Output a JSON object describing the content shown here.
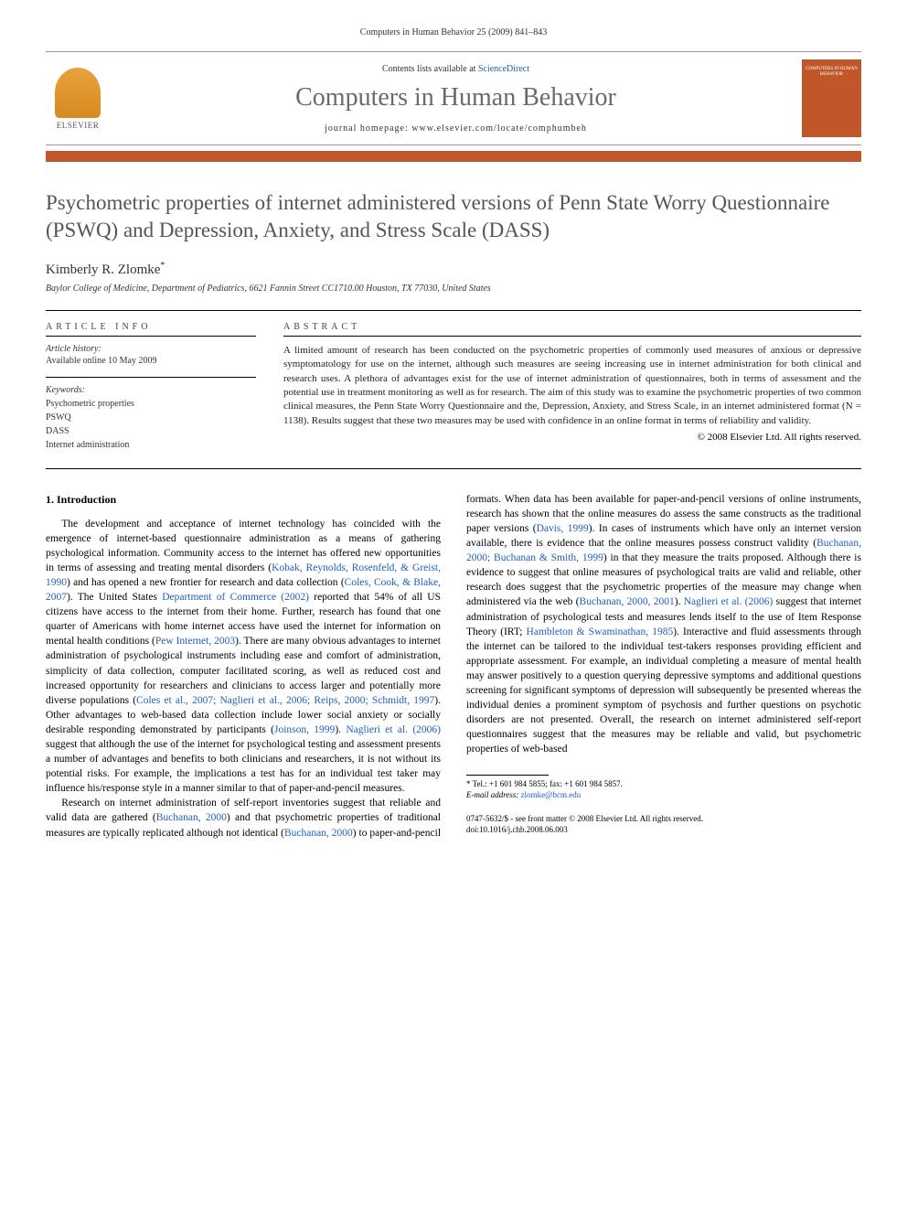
{
  "running_head": "Computers in Human Behavior 25 (2009) 841–843",
  "banner": {
    "publisher": "ELSEVIER",
    "contents_prefix": "Contents lists available at ",
    "contents_link": "ScienceDirect",
    "journal_title": "Computers in Human Behavior",
    "homepage_label": "journal homepage: www.elsevier.com/locate/comphumbeh",
    "cover_text": "COMPUTERS IN HUMAN BEHAVIOR"
  },
  "colors": {
    "accent_orange": "#c0562a",
    "link_blue": "#2060c0",
    "title_gray": "#555555",
    "journal_title_gray": "#6a6a6a"
  },
  "article": {
    "title": "Psychometric properties of internet administered versions of Penn State Worry Questionnaire (PSWQ) and Depression, Anxiety, and Stress Scale (DASS)",
    "author": "Kimberly R. Zlomke",
    "author_marker": "*",
    "affiliation": "Baylor College of Medicine, Department of Pediatrics, 6621 Fannin Street CC1710.00 Houston, TX 77030, United States"
  },
  "article_info": {
    "head": "ARTICLE INFO",
    "history_label": "Article history:",
    "history_text": "Available online 10 May 2009",
    "keywords_label": "Keywords:",
    "keywords": [
      "Psychometric properties",
      "PSWQ",
      "DASS",
      "Internet administration"
    ]
  },
  "abstract": {
    "head": "ABSTRACT",
    "text": "A limited amount of research has been conducted on the psychometric properties of commonly used measures of anxious or depressive symptomatology for use on the internet, although such measures are seeing increasing use in internet administration for both clinical and research uses. A plethora of advantages exist for the use of internet administration of questionnaires, both in terms of assessment and the potential use in treatment monitoring as well as for research. The aim of this study was to examine the psychometric properties of two common clinical measures, the Penn State Worry Questionnaire and the, Depression, Anxiety, and Stress Scale, in an internet administered format (N = 1138). Results suggest that these two measures may be used with confidence in an online format in terms of reliability and validity.",
    "copyright": "© 2008 Elsevier Ltd. All rights reserved."
  },
  "body": {
    "section_number": "1.",
    "section_title": "Introduction",
    "para1_a": "The development and acceptance of internet technology has coincided with the emergence of internet-based questionnaire administration as a means of gathering psychological information. Community access to the internet has offered new opportunities in terms of assessing and treating mental disorders (",
    "cite1": "Kobak, Reynolds, Rosenfeld, & Greist, 1990",
    "para1_b": ") and has opened a new frontier for research and data collection (",
    "cite2": "Coles, Cook, & Blake, 2007",
    "para1_c": "). The United States ",
    "cite3": "Department of Commerce (2002)",
    "para1_d": " reported that 54% of all US citizens have access to the internet from their home. Further, research has found that one quarter of Americans with home internet access have used the internet for information on mental health conditions (",
    "cite4": "Pew Internet, 2003",
    "para1_e": "). There are many obvious advantages to internet administration of psychological instruments including ease and comfort of administration, simplicity of data collection, computer facilitated scoring, as well as reduced cost and increased opportunity for researchers and clinicians to access larger and potentially more diverse populations (",
    "cite5": "Coles et al., 2007; Naglieri et al., 2006; Reips, 2000; Schmidt, 1997",
    "para1_f": "). Other advantages to web-based data collection include lower social anxiety or socially desirable responding demonstrated by participants (",
    "cite6": "Joinson, 1999",
    "para1_g": "). ",
    "cite7": "Naglieri et al. (2006)",
    "para1_h": " suggest that although the use of the internet for psychological testing and assessment presents a number of advantages and benefits to both clinicians and researchers, it is not without its potential risks. For example, the implications a test has for an individual test taker may influence his/",
    "para2_a": "response style in a manner similar to that of paper-and-pencil measures.",
    "para3_a": "Research on internet administration of self-report inventories suggest that reliable and valid data are gathered (",
    "cite8": "Buchanan, 2000",
    "para3_b": ") and that psychometric properties of traditional measures are typically replicated although not identical (",
    "cite9": "Buchanan, 2000",
    "para3_c": ") to paper-and-pencil formats. When data has been available for paper-and-pencil versions of online instruments, research has shown that the online measures do assess the same constructs as the traditional paper versions (",
    "cite10": "Davis, 1999",
    "para3_d": "). In cases of instruments which have only an internet version available, there is evidence that the online measures possess construct validity (",
    "cite11": "Buchanan, 2000; Buchanan & Smith, 1999",
    "para3_e": ") in that they measure the traits proposed. Although there is evidence to suggest that online measures of psychological traits are valid and reliable, other research does suggest that the psychometric properties of the measure may change when administered via the web (",
    "cite12": "Buchanan, 2000, 2001",
    "para3_f": "). ",
    "cite13": "Naglieri et al. (2006)",
    "para3_g": " suggest that internet administration of psychological tests and measures lends itself to the use of Item Response Theory (IRT; ",
    "cite14": "Hambleton & Swaminathan, 1985",
    "para3_h": "). Interactive and fluid assessments through the internet can be tailored to the individual test-takers responses providing efficient and appropriate assessment. For example, an individual completing a measure of mental health may answer positively to a question querying depressive symptoms and additional questions screening for significant symptoms of depression will subsequently be presented whereas the individual denies a prominent symptom of psychosis and further questions on psychotic disorders are not presented. Overall, the research on internet administered self-report questionnaires suggest that the measures may be reliable and valid, but psychometric properties of web-based"
  },
  "footnote": {
    "tel": "* Tel.: +1 601 984 5855; fax: +1 601 984 5857.",
    "email_label": "E-mail address:",
    "email": "zlomke@bcm.edu"
  },
  "bottom": {
    "issn": "0747-5632/$ - see front matter © 2008 Elsevier Ltd. All rights reserved.",
    "doi": "doi:10.1016/j.chb.2008.06.003"
  }
}
